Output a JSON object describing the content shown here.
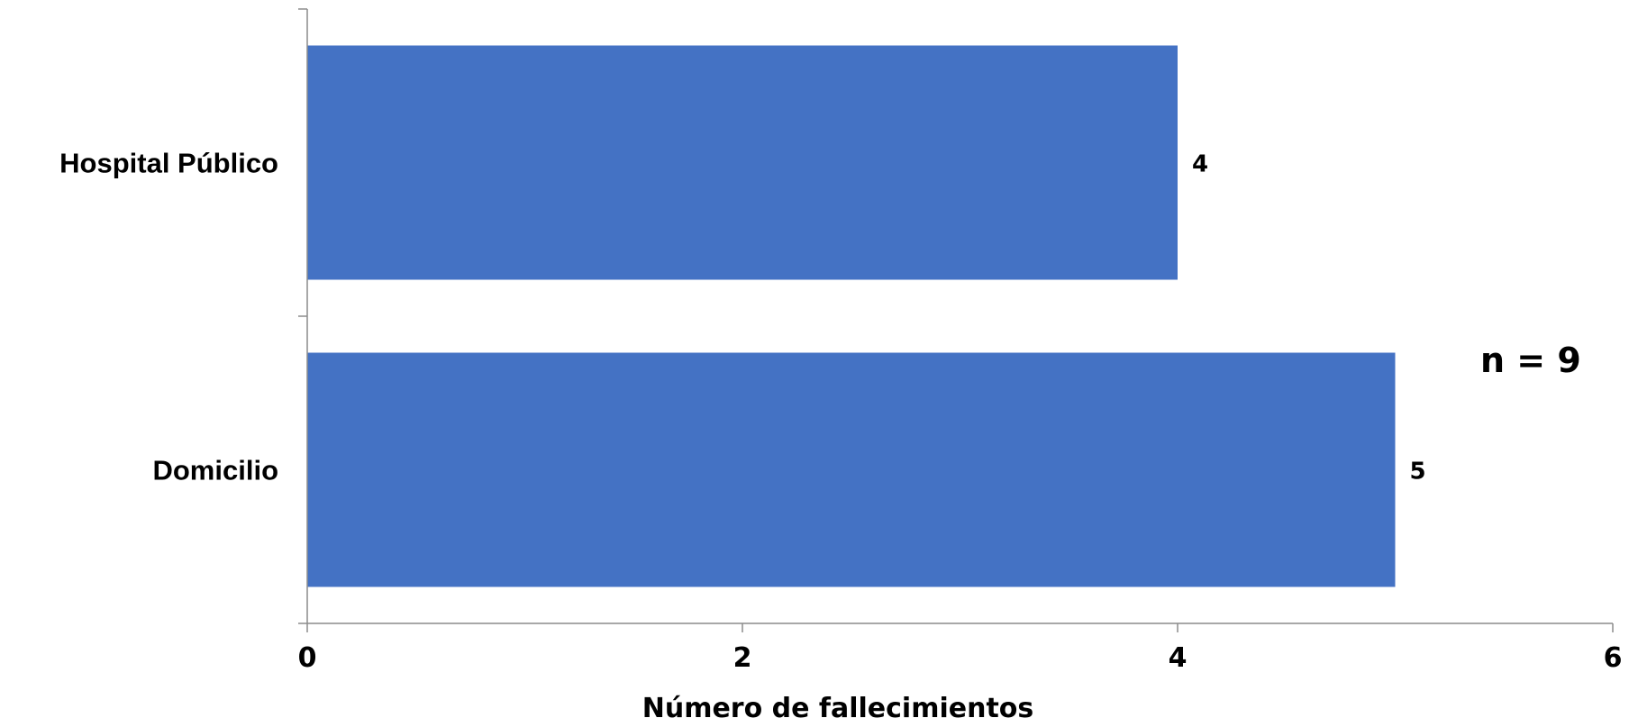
{
  "chart_data": {
    "type": "bar",
    "orientation": "horizontal",
    "categories": [
      "Hospital Público",
      "Domicilio"
    ],
    "values": [
      4,
      5
    ],
    "data_labels": [
      "4",
      "5"
    ],
    "xlabel": "Número de fallecimientos",
    "ylabel": "",
    "xlim": [
      0,
      6
    ],
    "x_ticks": [
      0,
      2,
      4,
      6
    ],
    "x_tick_labels": [
      "0",
      "2",
      "4",
      "6"
    ],
    "grid": false,
    "legend": "none",
    "bar_color": "#4472C4",
    "annotation": "n = 9"
  }
}
